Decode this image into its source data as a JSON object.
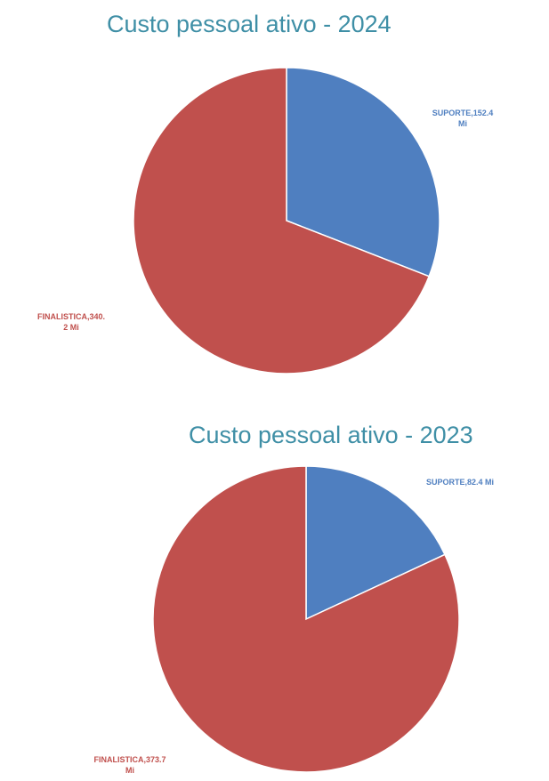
{
  "chart_data": [
    {
      "type": "pie",
      "title": "Custo pessoal ativo - 2024",
      "slices": [
        {
          "name": "SUPORTE",
          "value": 152.4,
          "color": "#4f7fc0",
          "label_line1": "SUPORTE,152.4",
          "label_line2": "Mi"
        },
        {
          "name": "FINALISTICA",
          "value": 340.2,
          "color": "#c0504d",
          "label_line1": "FINALISTICA,340.",
          "label_line2": "2 Mi"
        }
      ]
    },
    {
      "type": "pie",
      "title": "Custo pessoal ativo - 2023",
      "slices": [
        {
          "name": "SUPORTE",
          "value": 82.4,
          "color": "#4f7fc0",
          "label_line1": "SUPORTE,82.4 Mi",
          "label_line2": ""
        },
        {
          "name": "FINALISTICA",
          "value": 373.7,
          "color": "#c0504d",
          "label_line1": "FINALISTICA,373.7",
          "label_line2": "Mi"
        }
      ]
    }
  ]
}
